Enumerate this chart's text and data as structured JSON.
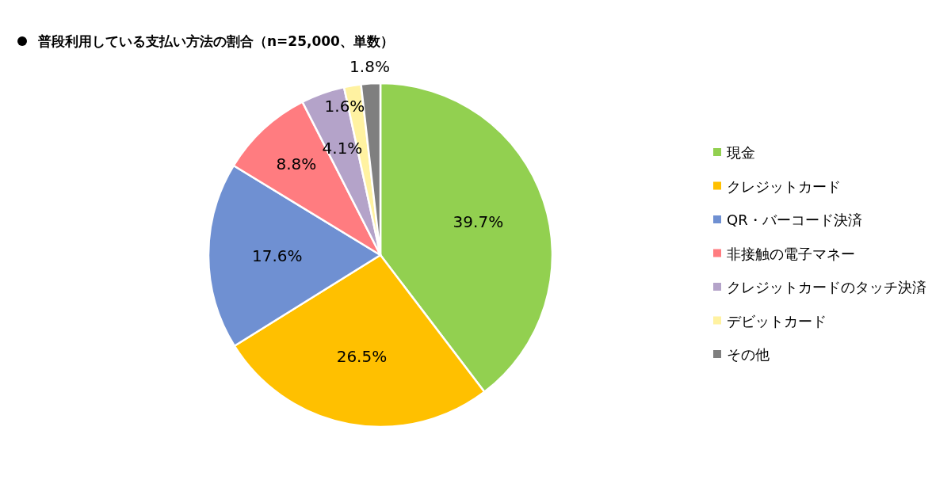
{
  "chart_data": {
    "type": "pie",
    "title": "普段利用している支払い方法の割合（n=25,000、単数）",
    "categories": [
      "現金",
      "クレジットカード",
      "QR・バーコード決済",
      "非接触の電子マネー",
      "クレジットカードのタッチ決済",
      "デビットカード",
      "その他"
    ],
    "values": [
      39.7,
      26.5,
      17.6,
      8.8,
      4.1,
      1.6,
      1.8
    ],
    "colors": [
      "#92d050",
      "#ffc000",
      "#6f90d2",
      "#ff7c80",
      "#b4a3c9",
      "#fff2a1",
      "#7f7f7f"
    ],
    "value_labels": [
      "39.7%",
      "26.5%",
      "17.6%",
      "8.8%",
      "4.1%",
      "1.6%",
      "1.8%"
    ],
    "legend": "right"
  }
}
